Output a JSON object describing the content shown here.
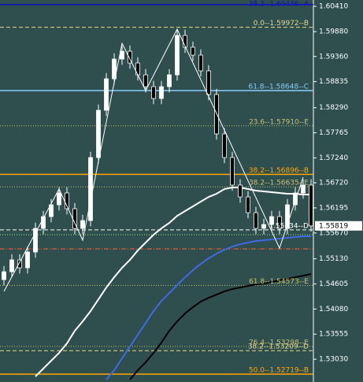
{
  "chart_data": {
    "type": "candlestick",
    "ylim": [
      1.52554,
      1.60542
    ],
    "yticks": [
      {
        "value": 1.6041,
        "label": "1.60410"
      },
      {
        "value": 1.5988,
        "label": "1.59880"
      },
      {
        "value": 1.5936,
        "label": "1.59360"
      },
      1.58835,
      {
        "value": 1.5829,
        "label": "1.58290"
      },
      1.57765,
      {
        "value": 1.5724,
        "label": "1.57240"
      },
      {
        "value": 1.5672,
        "label": "1.56720"
      },
      1.56195,
      {
        "value": 1.5567,
        "label": "1.55670"
      },
      {
        "value": 1.5513,
        "label": "1.55130"
      },
      1.54605,
      {
        "value": 1.5408,
        "label": "1.54080"
      },
      1.53555,
      {
        "value": 1.5303,
        "label": "1.53030"
      }
    ],
    "current_price": 1.55819,
    "background": "#2f4f4f",
    "up_color": "#ffffff",
    "down_color": "#000000",
    "open": [
      1.54695,
      1.5486,
      1.55107,
      1.54942,
      1.55272,
      1.55766,
      1.56013,
      1.5626,
      1.56507,
      1.56177,
      1.55766,
      1.5593,
      1.57248,
      1.58236,
      1.58895,
      1.59307,
      1.59471,
      1.59224,
      1.58977,
      1.5873,
      1.58483,
      1.5873,
      1.58977,
      1.59801,
      1.59554,
      1.59389,
      1.5906,
      1.58566,
      1.57742,
      1.57248,
      1.56672,
      1.56424,
      1.56095,
      1.55766,
      1.55848,
      1.56013,
      1.55766,
      1.5626,
      1.56507,
      1.56672
    ],
    "high": [
      1.5498,
      1.55227,
      1.55227,
      1.55392,
      1.55886,
      1.56133,
      1.5638,
      1.56627,
      1.56627,
      1.56297,
      1.5605,
      1.57368,
      1.58356,
      1.59015,
      1.59427,
      1.59591,
      1.59591,
      1.59344,
      1.59097,
      1.5885,
      1.5885,
      1.59097,
      1.59921,
      1.59921,
      1.59674,
      1.59509,
      1.5918,
      1.58686,
      1.57862,
      1.57368,
      1.56792,
      1.56544,
      1.56215,
      1.55968,
      1.56133,
      1.56133,
      1.5638,
      1.56627,
      1.56792,
      1.56792
    ],
    "low": [
      1.54575,
      1.5474,
      1.54822,
      1.54822,
      1.55152,
      1.55646,
      1.55893,
      1.5614,
      1.56057,
      1.55646,
      1.55646,
      1.5581,
      1.57128,
      1.58116,
      1.58775,
      1.59187,
      1.59104,
      1.58857,
      1.5861,
      1.58363,
      1.58363,
      1.5861,
      1.58857,
      1.59434,
      1.59269,
      1.5894,
      1.58446,
      1.57622,
      1.57128,
      1.56552,
      1.56304,
      1.55975,
      1.55646,
      1.55646,
      1.55728,
      1.55646,
      1.55646,
      1.5614,
      1.56387,
      1.55699
    ],
    "close": [
      1.5486,
      1.55107,
      1.54942,
      1.55272,
      1.55766,
      1.56013,
      1.5626,
      1.56507,
      1.56177,
      1.55766,
      1.5593,
      1.57248,
      1.58236,
      1.58895,
      1.59307,
      1.59471,
      1.59224,
      1.58977,
      1.5873,
      1.58483,
      1.5873,
      1.58977,
      1.59801,
      1.59554,
      1.59389,
      1.5906,
      1.58566,
      1.57742,
      1.57248,
      1.56672,
      1.56424,
      1.56095,
      1.55766,
      1.55848,
      1.56013,
      1.55766,
      1.5626,
      1.56507,
      1.56672,
      1.55819
    ],
    "moving_averages": [
      {
        "color": "#ffffff",
        "values": [
          null,
          null,
          null,
          null,
          1.52669,
          1.52834,
          1.52999,
          1.53163,
          1.53361,
          1.53625,
          1.53822,
          1.54036,
          1.54283,
          1.5453,
          1.54745,
          1.54942,
          1.55107,
          1.55305,
          1.55469,
          1.55634,
          1.55766,
          1.55881,
          1.56029,
          1.56128,
          1.56227,
          1.56326,
          1.56424,
          1.5649,
          1.56589,
          1.56622,
          1.56622,
          1.56589,
          1.56556,
          1.5654,
          1.56523,
          1.56507,
          1.5649,
          1.5649,
          1.56474,
          1.56474
        ]
      },
      {
        "color": "#4169e1",
        "values": [
          null,
          null,
          null,
          null,
          null,
          null,
          null,
          null,
          null,
          null,
          null,
          null,
          null,
          1.52603,
          1.52801,
          1.53048,
          1.53295,
          1.53542,
          1.53789,
          1.54036,
          1.5425,
          1.54415,
          1.5458,
          1.54745,
          1.54893,
          1.55025,
          1.5514,
          1.55239,
          1.55321,
          1.55387,
          1.55436,
          1.55469,
          1.55502,
          1.55519,
          1.55535,
          1.55552,
          1.55568,
          1.55585,
          1.55601,
          1.55601
        ]
      },
      {
        "color": "#000000",
        "values": [
          null,
          null,
          null,
          null,
          null,
          null,
          null,
          null,
          null,
          null,
          null,
          null,
          null,
          null,
          null,
          null,
          1.52603,
          1.52801,
          1.52966,
          1.53163,
          1.53378,
          1.53625,
          1.53822,
          1.53987,
          1.54119,
          1.54234,
          1.54316,
          1.54382,
          1.54448,
          1.54498,
          1.5453,
          1.54563,
          1.54596,
          1.54613,
          1.54646,
          1.54679,
          1.54712,
          1.54745,
          1.54777,
          1.5481
        ]
      }
    ],
    "zigzag": {
      "color": "#ffffff",
      "x": [
        0,
        7,
        10,
        15,
        18,
        22,
        35,
        38
      ],
      "values": [
        1.54448,
        1.56589,
        1.55519,
        1.59636,
        1.58648,
        1.59933,
        1.55354,
        1.56836
      ]
    },
    "levels": [
      {
        "label": "38.2--1.60446--A",
        "value": 1.60446,
        "color": "#1010c0",
        "style": "solid"
      },
      {
        "label": "0.0--1.59972--B",
        "value": 1.59972,
        "color": "#e0d890",
        "style": "dash"
      },
      {
        "label": "61.8--1.58648--C",
        "value": 1.58648,
        "color": "#87cefa",
        "style": "solid"
      },
      {
        "label": "23.6--1.57910--E",
        "value": 1.5791,
        "color": "#c8c070",
        "style": "dot"
      },
      {
        "label": "38.2--1.56896--B",
        "value": 1.56896,
        "color": "#ffa500",
        "style": "solid"
      },
      {
        "label": "38.2--1.56635--E",
        "value": 1.56635,
        "color": "#c8c070",
        "style": "dot"
      },
      {
        "label": "1.55734--D",
        "value": 1.55734,
        "color": "#ffffff",
        "style": "dash"
      },
      {
        "value": 1.55634,
        "color": "#90ee90",
        "style": "dot"
      },
      {
        "value": 1.55338,
        "color": "#ff6030",
        "style": "dashdot"
      },
      {
        "label": "61.8--1.54573--E",
        "value": 1.54573,
        "color": "#c8c070",
        "style": "dot"
      },
      {
        "label": "76.4--1.53298--E",
        "value": 1.53298,
        "color": "#c8c070",
        "style": "dot"
      },
      {
        "label": "38.2--1.53209--D",
        "value": 1.53209,
        "color": "#e0d890",
        "style": "dash"
      },
      {
        "label": "50.0--1.52719--B",
        "value": 1.52719,
        "color": "#ffa500",
        "style": "solid"
      }
    ]
  }
}
